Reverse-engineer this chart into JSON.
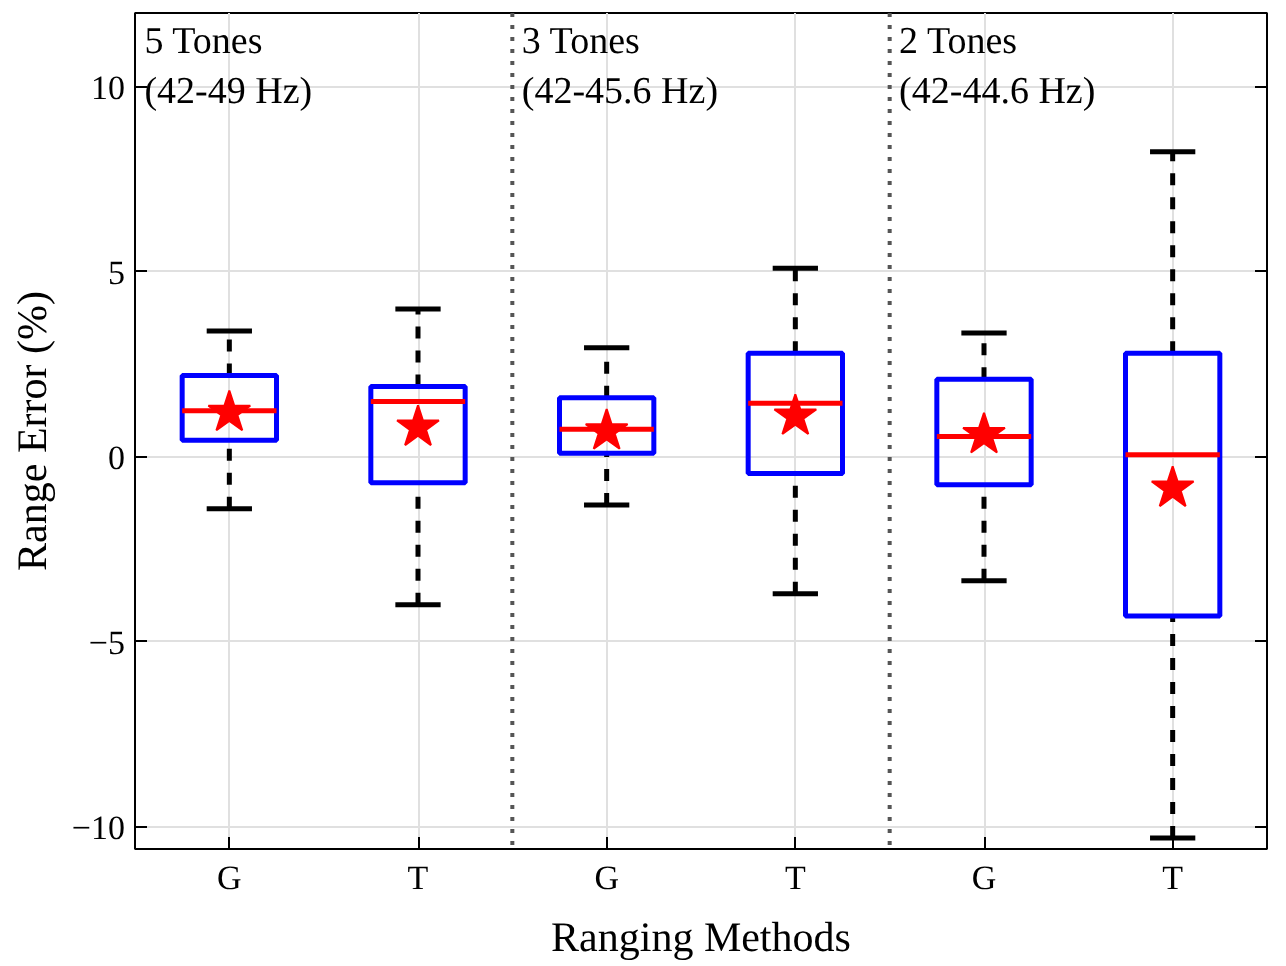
{
  "chart_data": {
    "type": "box",
    "xlabel": "Ranging Methods",
    "ylabel": "Range Error (%)",
    "categories": [
      "G",
      "T",
      "G",
      "T",
      "G",
      "T"
    ],
    "ylim": [
      -10.6,
      12
    ],
    "yticks": [
      {
        "value": -10,
        "label": "−10"
      },
      {
        "value": -5,
        "label": "−5"
      },
      0,
      5,
      10
    ],
    "grid": true,
    "marker": "star",
    "series": [
      {
        "color": "#0000ff",
        "boxes": [
          {
            "low": -1.4,
            "q1": 0.45,
            "median": 1.25,
            "q3": 2.2,
            "high": 3.4,
            "mean": 1.2
          },
          {
            "low": -4.0,
            "q1": -0.7,
            "median": 1.5,
            "q3": 1.9,
            "high": 4.0,
            "mean": 0.8
          },
          {
            "low": -1.3,
            "q1": 0.1,
            "median": 0.75,
            "q3": 1.6,
            "high": 2.95,
            "mean": 0.7
          },
          {
            "low": -3.7,
            "q1": -0.45,
            "median": 1.45,
            "q3": 2.8,
            "high": 5.1,
            "mean": 1.1
          },
          {
            "low": -3.35,
            "q1": -0.75,
            "median": 0.55,
            "q3": 2.1,
            "high": 3.35,
            "mean": 0.6
          },
          {
            "low": -10.3,
            "q1": -4.3,
            "median": 0.06,
            "q3": 2.8,
            "high": 8.25,
            "mean": -0.85
          }
        ]
      }
    ],
    "annotations": [
      "5 Tones\n(42-49 Hz)",
      "3 Tones\n(42-45.6 Hz)",
      "2 Tones\n(42-44.6 Hz)"
    ]
  }
}
